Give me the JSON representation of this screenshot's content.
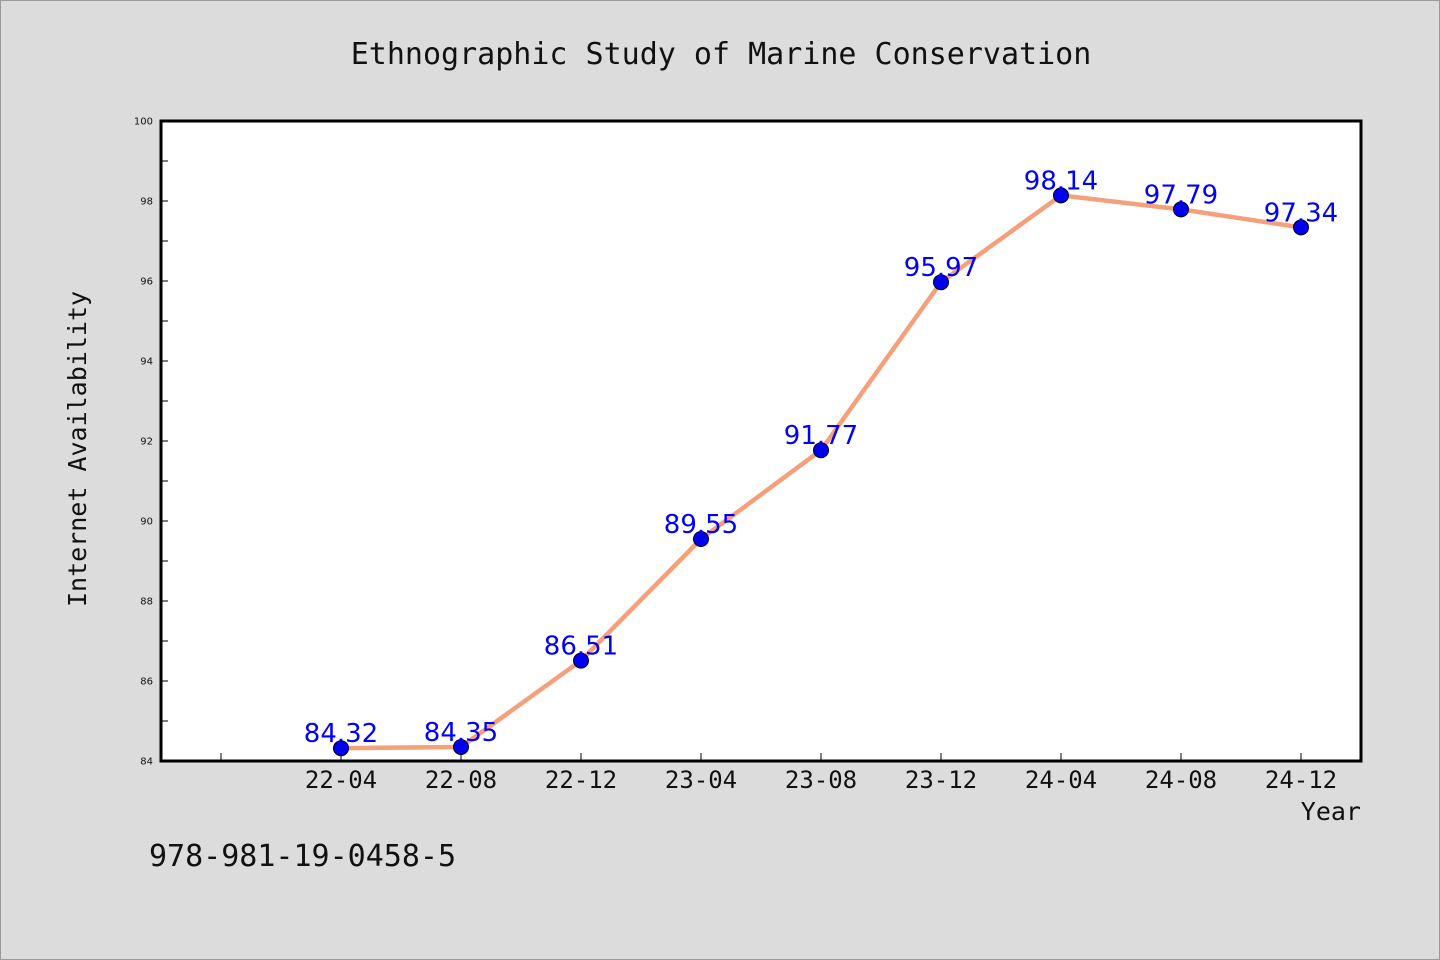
{
  "chart_data": {
    "type": "line",
    "title": "Ethnographic Study of Marine Conservation",
    "xlabel": "Year",
    "ylabel": "Internet Availability",
    "categories": [
      "22-04",
      "22-08",
      "22-12",
      "23-04",
      "23-08",
      "23-12",
      "24-04",
      "24-08",
      "24-12"
    ],
    "series": [
      {
        "values": [
          84.32,
          84.35,
          86.51,
          89.55,
          91.77,
          95.97,
          98.14,
          97.79,
          97.34
        ],
        "line_color": "#f4a07a",
        "marker_color": "#0000ee",
        "label_color": "#0000ff"
      }
    ],
    "data_labels": [
      "84.32",
      "84.35",
      "86.51",
      "89.55",
      "91.77",
      "95.97",
      "98.14",
      "97.79",
      "97.34"
    ],
    "ylim": [
      84,
      100
    ],
    "yticks": [
      84,
      86,
      88,
      90,
      92,
      94,
      96,
      98,
      100
    ],
    "ytick_labels": [
      "84",
      "86",
      "88",
      "90",
      "92",
      "94",
      "96",
      "98",
      "100"
    ],
    "grid": false,
    "legend": "none"
  },
  "footer": {
    "isbn": "978-981-19-0458-5"
  },
  "colors": {
    "background": "#dcdcdc",
    "plot_background": "#ffffff",
    "axes": "#000000"
  }
}
